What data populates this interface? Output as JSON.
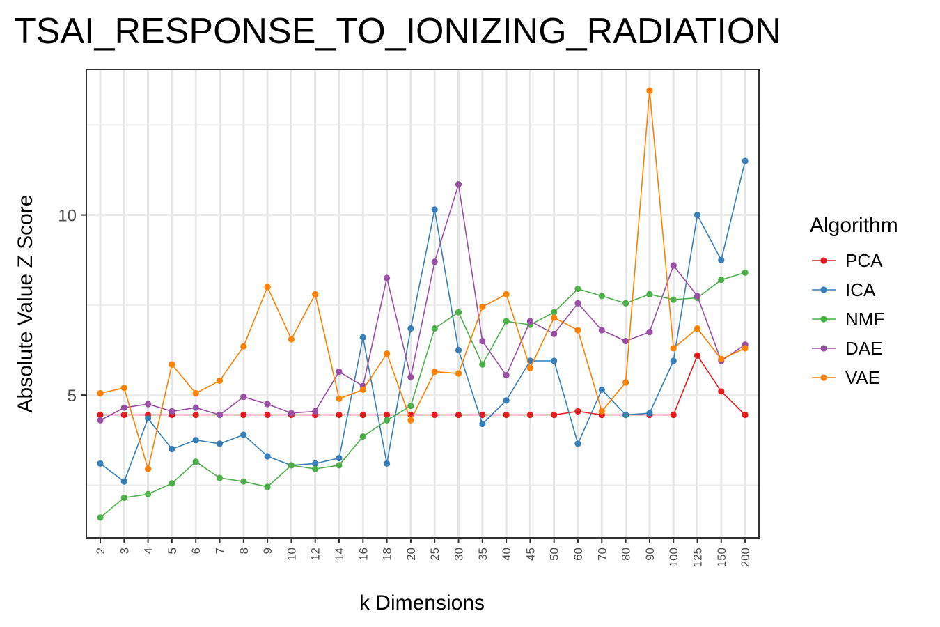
{
  "chart_data": {
    "type": "line",
    "title": "TSAI_RESPONSE_TO_IONIZING_RADIATION",
    "xlabel": "k Dimensions",
    "ylabel": "Absolute Value Z Score",
    "categories": [
      "2",
      "3",
      "4",
      "5",
      "6",
      "7",
      "8",
      "9",
      "10",
      "12",
      "14",
      "16",
      "18",
      "20",
      "25",
      "30",
      "35",
      "40",
      "45",
      "50",
      "60",
      "70",
      "80",
      "90",
      "100",
      "125",
      "150",
      "200"
    ],
    "y_ticks": [
      5,
      10
    ],
    "ylim": [
      1.3,
      13.8
    ],
    "grid": true,
    "legend": {
      "title": "Algorithm",
      "position": "right"
    },
    "series": [
      {
        "name": "PCA",
        "color": "#E41A1C",
        "values": [
          4.45,
          4.45,
          4.45,
          4.45,
          4.45,
          4.45,
          4.45,
          4.45,
          4.45,
          4.45,
          4.45,
          4.45,
          4.45,
          4.45,
          4.45,
          4.45,
          4.45,
          4.45,
          4.45,
          4.45,
          4.55,
          4.45,
          4.45,
          4.45,
          4.45,
          6.1,
          5.1,
          4.45
        ]
      },
      {
        "name": "ICA",
        "color": "#377EB8",
        "values": [
          3.1,
          2.6,
          4.35,
          3.5,
          3.75,
          3.65,
          3.9,
          3.3,
          3.05,
          3.1,
          3.25,
          6.6,
          3.1,
          6.85,
          10.15,
          6.25,
          4.2,
          4.85,
          5.95,
          5.95,
          3.65,
          5.15,
          4.45,
          4.5,
          5.95,
          10.0,
          8.75,
          11.5
        ]
      },
      {
        "name": "NMF",
        "color": "#4DAF4A",
        "values": [
          1.6,
          2.15,
          2.25,
          2.55,
          3.15,
          2.7,
          2.6,
          2.45,
          3.05,
          2.95,
          3.05,
          3.85,
          4.3,
          4.7,
          6.85,
          7.3,
          5.85,
          7.05,
          6.95,
          7.3,
          7.95,
          7.75,
          7.55,
          7.8,
          7.65,
          7.7,
          8.2,
          8.4
        ]
      },
      {
        "name": "DAE",
        "color": "#984EA3",
        "values": [
          4.3,
          4.65,
          4.75,
          4.55,
          4.65,
          4.45,
          4.95,
          4.75,
          4.5,
          4.55,
          5.65,
          5.25,
          8.25,
          5.5,
          8.7,
          10.85,
          6.5,
          5.55,
          7.05,
          6.7,
          7.55,
          6.8,
          6.5,
          6.75,
          8.6,
          7.75,
          5.95,
          6.4
        ]
      },
      {
        "name": "VAE",
        "color": "#FF7F00",
        "values": [
          5.05,
          5.2,
          2.95,
          5.85,
          5.05,
          5.4,
          6.35,
          8.0,
          6.55,
          7.8,
          4.9,
          5.15,
          6.15,
          4.3,
          5.65,
          5.6,
          7.45,
          7.8,
          5.75,
          7.15,
          6.8,
          4.55,
          5.35,
          13.45,
          6.3,
          6.85,
          6.0,
          6.3
        ]
      }
    ]
  }
}
